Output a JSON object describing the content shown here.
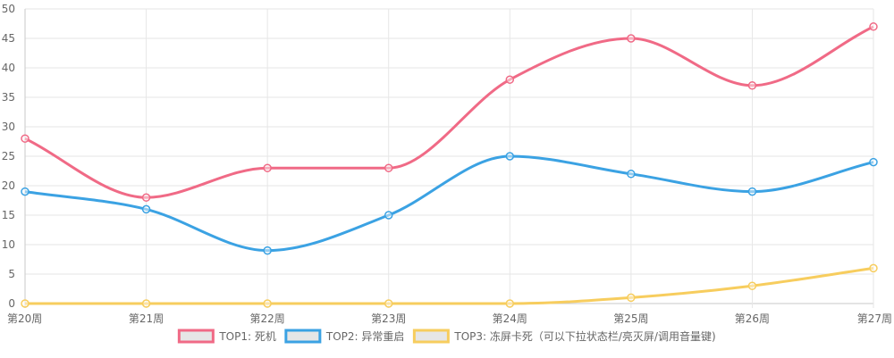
{
  "chart_data": {
    "type": "line",
    "categories": [
      "第20周",
      "第21周",
      "第22周",
      "第23周",
      "第24周",
      "第25周",
      "第26周",
      "第27周"
    ],
    "ylim": [
      0,
      50
    ],
    "yticks": [
      0,
      5,
      10,
      15,
      20,
      25,
      30,
      35,
      40,
      45,
      50
    ],
    "grid": true,
    "legend_position": "bottom",
    "series": [
      {
        "name": "TOP1: 死机",
        "color": "#f06a86",
        "values": [
          28,
          18,
          23,
          23,
          38,
          45,
          37,
          47
        ]
      },
      {
        "name": "TOP2: 异常重启",
        "color": "#3ba2e3",
        "values": [
          19,
          16,
          9,
          15,
          25,
          22,
          19,
          24
        ]
      },
      {
        "name": "TOP3: 冻屏卡死（可以下拉状态栏/亮灭屏/调用音量键)",
        "color": "#f7cd5e",
        "values": [
          0,
          0,
          0,
          0,
          0,
          1,
          3,
          6
        ]
      }
    ]
  }
}
